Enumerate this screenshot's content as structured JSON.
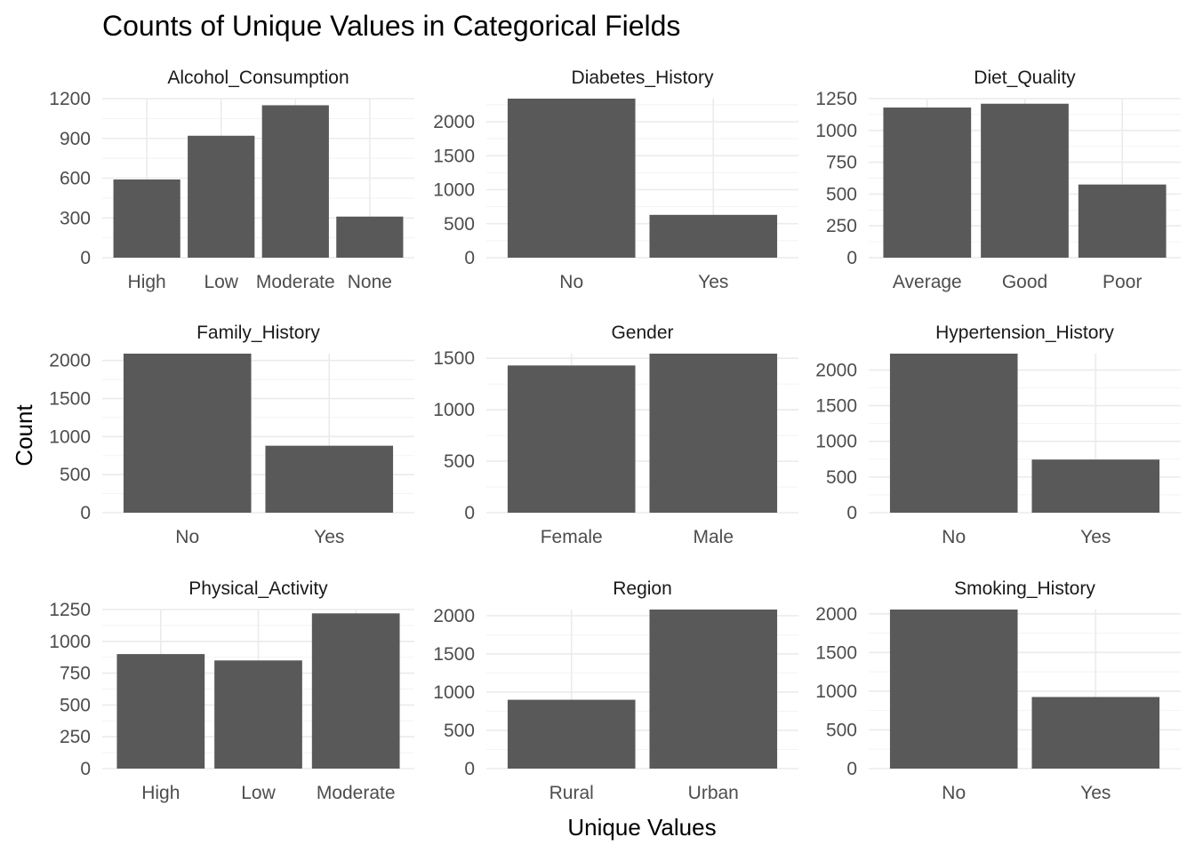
{
  "chart_data": {
    "type": "bar",
    "title": "Counts of Unique Values in Categorical Fields",
    "xlabel": "Unique Values",
    "ylabel": "Count",
    "bar_color": "#595959",
    "grid": true,
    "facets": [
      {
        "name": "Alcohol_Consumption",
        "categories": [
          "High",
          "Low",
          "Moderate",
          "None"
        ],
        "values": [
          590,
          920,
          1150,
          310
        ],
        "ylim": [
          0,
          1200
        ],
        "yticks": [
          0,
          300,
          600,
          900,
          1200
        ]
      },
      {
        "name": "Diabetes_History",
        "categories": [
          "No",
          "Yes"
        ],
        "values": [
          2340,
          630
        ],
        "ylim": [
          0,
          2340
        ],
        "yticks": [
          0,
          500,
          1000,
          1500,
          2000
        ]
      },
      {
        "name": "Diet_Quality",
        "categories": [
          "Average",
          "Good",
          "Poor"
        ],
        "values": [
          1180,
          1210,
          575
        ],
        "ylim": [
          0,
          1250
        ],
        "yticks": [
          0,
          250,
          500,
          750,
          1000,
          1250
        ]
      },
      {
        "name": "Family_History",
        "categories": [
          "No",
          "Yes"
        ],
        "values": [
          2090,
          880
        ],
        "ylim": [
          0,
          2090
        ],
        "yticks": [
          0,
          500,
          1000,
          1500,
          2000
        ]
      },
      {
        "name": "Gender",
        "categories": [
          "Female",
          "Male"
        ],
        "values": [
          1430,
          1545
        ],
        "ylim": [
          0,
          1545
        ],
        "yticks": [
          0,
          500,
          1000,
          1500
        ]
      },
      {
        "name": "Hypertension_History",
        "categories": [
          "No",
          "Yes"
        ],
        "values": [
          2230,
          745
        ],
        "ylim": [
          0,
          2230
        ],
        "yticks": [
          0,
          500,
          1000,
          1500,
          2000
        ]
      },
      {
        "name": "Physical_Activity",
        "categories": [
          "High",
          "Low",
          "Moderate"
        ],
        "values": [
          900,
          850,
          1220
        ],
        "ylim": [
          0,
          1250
        ],
        "yticks": [
          0,
          250,
          500,
          750,
          1000,
          1250
        ]
      },
      {
        "name": "Region",
        "categories": [
          "Rural",
          "Urban"
        ],
        "values": [
          900,
          2080
        ],
        "ylim": [
          0,
          2080
        ],
        "yticks": [
          0,
          500,
          1000,
          1500,
          2000
        ]
      },
      {
        "name": "Smoking_History",
        "categories": [
          "No",
          "Yes"
        ],
        "values": [
          2055,
          925
        ],
        "ylim": [
          0,
          2055
        ],
        "yticks": [
          0,
          500,
          1000,
          1500,
          2000
        ]
      }
    ]
  }
}
